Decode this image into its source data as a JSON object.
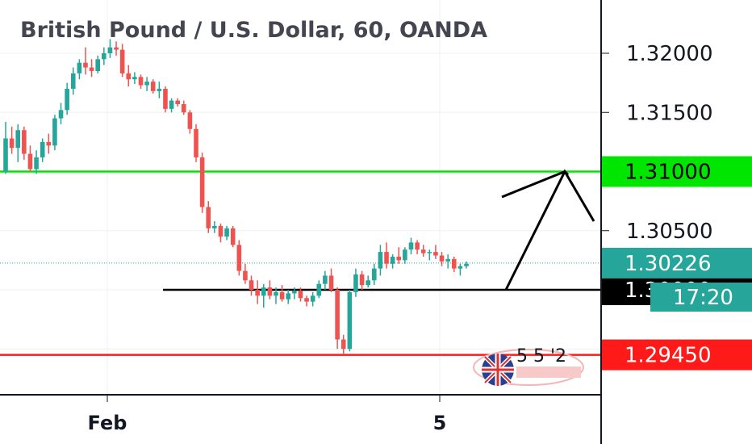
{
  "title": "British Pound / U.S. Dollar, 60, OANDA",
  "colors": {
    "up": "#26a69a",
    "down": "#ef5350",
    "grid": "#eef0f3",
    "resistance": "#00e600",
    "support": "#ff1a1a",
    "pivot": "#000000",
    "current": "#26a69a"
  },
  "chart_data": {
    "type": "candlestick",
    "interval": "60",
    "y_ticks": [
      "1.32000",
      "1.31500",
      "1.30500"
    ],
    "partial_tick": "1.",
    "x_ticks": [
      "Feb",
      "5"
    ],
    "ylim": [
      1.2925,
      1.3225
    ],
    "horizontal_lines": [
      {
        "price": 1.31,
        "color": "resistance",
        "label": "1.31000",
        "label_bg": "#00e600",
        "label_fg": "#000000"
      },
      {
        "price": 1.2945,
        "color": "support",
        "label": "1.29450",
        "label_bg": "#ff1a1a",
        "label_fg": "#ffffff"
      },
      {
        "price": 1.3,
        "color": "pivot",
        "label": "1.30000",
        "label_bg": "#000000",
        "label_fg": "#ffffff"
      }
    ],
    "current_price": {
      "value": "1.30226",
      "countdown": "17:20"
    },
    "forecast_path": [
      1.3,
      1.31,
      1.3058
    ],
    "series_ohlc": [
      [
        1.31,
        1.3142,
        1.3098,
        1.3128
      ],
      [
        1.3128,
        1.3138,
        1.3115,
        1.312
      ],
      [
        1.312,
        1.314,
        1.3108,
        1.3135
      ],
      [
        1.3135,
        1.3138,
        1.311,
        1.3115
      ],
      [
        1.3115,
        1.3122,
        1.31,
        1.3102
      ],
      [
        1.3102,
        1.3118,
        1.3098,
        1.3112
      ],
      [
        1.3112,
        1.3128,
        1.3108,
        1.3125
      ],
      [
        1.3125,
        1.3132,
        1.3115,
        1.3122
      ],
      [
        1.3122,
        1.3148,
        1.3118,
        1.3145
      ],
      [
        1.3145,
        1.3158,
        1.314,
        1.3152
      ],
      [
        1.3152,
        1.3175,
        1.3148,
        1.317
      ],
      [
        1.317,
        1.3188,
        1.3165,
        1.3183
      ],
      [
        1.3183,
        1.3195,
        1.3178,
        1.3192
      ],
      [
        1.3192,
        1.3205,
        1.3182,
        1.3188
      ],
      [
        1.3188,
        1.3195,
        1.318,
        1.3185
      ],
      [
        1.3185,
        1.3198,
        1.3183,
        1.3195
      ],
      [
        1.3195,
        1.3205,
        1.319,
        1.32
      ],
      [
        1.32,
        1.3212,
        1.3196,
        1.3205
      ],
      [
        1.3205,
        1.321,
        1.3198,
        1.3203
      ],
      [
        1.3203,
        1.3208,
        1.318,
        1.3183
      ],
      [
        1.3183,
        1.319,
        1.3172,
        1.3178
      ],
      [
        1.3178,
        1.3184,
        1.3174,
        1.318
      ],
      [
        1.318,
        1.3182,
        1.317,
        1.3173
      ],
      [
        1.3173,
        1.318,
        1.3168,
        1.3176
      ],
      [
        1.3176,
        1.3178,
        1.3166,
        1.3168
      ],
      [
        1.3168,
        1.3176,
        1.3162,
        1.317
      ],
      [
        1.317,
        1.3172,
        1.315,
        1.3153
      ],
      [
        1.3153,
        1.3162,
        1.315,
        1.316
      ],
      [
        1.316,
        1.3162,
        1.3155,
        1.3157
      ],
      [
        1.3157,
        1.316,
        1.3148,
        1.315
      ],
      [
        1.315,
        1.3152,
        1.3132,
        1.3136
      ],
      [
        1.3136,
        1.314,
        1.3108,
        1.3112
      ],
      [
        1.3112,
        1.3116,
        1.3065,
        1.307
      ],
      [
        1.307,
        1.3075,
        1.3048,
        1.3052
      ],
      [
        1.3052,
        1.3058,
        1.3048,
        1.3054
      ],
      [
        1.3054,
        1.3056,
        1.304,
        1.3045
      ],
      [
        1.3045,
        1.3054,
        1.3042,
        1.3052
      ],
      [
        1.3052,
        1.3054,
        1.3036,
        1.3038
      ],
      [
        1.3038,
        1.3042,
        1.3012,
        1.3016
      ],
      [
        1.3016,
        1.3022,
        1.3005,
        1.3008
      ],
      [
        1.3008,
        1.3012,
        1.2995,
        1.3
      ],
      [
        1.3,
        1.3008,
        1.2988,
        1.2995
      ],
      [
        1.2995,
        1.3005,
        1.2985,
        1.3002
      ],
      [
        1.3002,
        1.3008,
        1.2992,
        1.2995
      ],
      [
        1.2995,
        1.3002,
        1.2988,
        1.2998
      ],
      [
        1.2998,
        1.3004,
        1.299,
        1.2992
      ],
      [
        1.2992,
        1.3,
        1.2988,
        1.2997
      ],
      [
        1.2997,
        1.3002,
        1.2992,
        1.2999
      ],
      [
        1.2999,
        1.3002,
        1.299,
        1.2993
      ],
      [
        1.2993,
        1.2995,
        1.2986,
        1.299
      ],
      [
        1.299,
        1.2998,
        1.2986,
        1.2995
      ],
      [
        1.2995,
        1.3008,
        1.2993,
        1.3005
      ],
      [
        1.3005,
        1.3016,
        1.3,
        1.3012
      ],
      [
        1.3012,
        1.3018,
        1.2998,
        1.3
      ],
      [
        1.3,
        1.3002,
        1.295,
        1.2958
      ],
      [
        1.2958,
        1.2962,
        1.2945,
        1.295
      ],
      [
        1.295,
        1.3,
        1.2948,
        1.2998
      ],
      [
        1.2998,
        1.3018,
        1.2994,
        1.3013
      ],
      [
        1.3013,
        1.3016,
        1.3,
        1.3004
      ],
      [
        1.3004,
        1.3012,
        1.3002,
        1.3008
      ],
      [
        1.3008,
        1.3022,
        1.3004,
        1.3018
      ],
      [
        1.3018,
        1.3038,
        1.3012,
        1.3032
      ],
      [
        1.3032,
        1.304,
        1.3018,
        1.3022
      ],
      [
        1.3022,
        1.303,
        1.3018,
        1.3028
      ],
      [
        1.3028,
        1.3036,
        1.3022,
        1.3025
      ],
      [
        1.3025,
        1.3036,
        1.3022,
        1.3034
      ],
      [
        1.3034,
        1.3044,
        1.303,
        1.304
      ],
      [
        1.304,
        1.3042,
        1.303,
        1.3034
      ],
      [
        1.3034,
        1.3038,
        1.3028,
        1.3031
      ],
      [
        1.3031,
        1.3034,
        1.3025,
        1.3032
      ],
      [
        1.3032,
        1.3038,
        1.3026,
        1.3029
      ],
      [
        1.3029,
        1.3032,
        1.302,
        1.3024
      ],
      [
        1.3024,
        1.303,
        1.3018,
        1.3026
      ],
      [
        1.3026,
        1.3028,
        1.3015,
        1.3018
      ],
      [
        1.3018,
        1.3022,
        1.3012,
        1.302
      ],
      [
        1.302,
        1.3024,
        1.3018,
        1.3022
      ]
    ]
  },
  "overlays": {
    "flag_numbers": "5 5  '2"
  }
}
